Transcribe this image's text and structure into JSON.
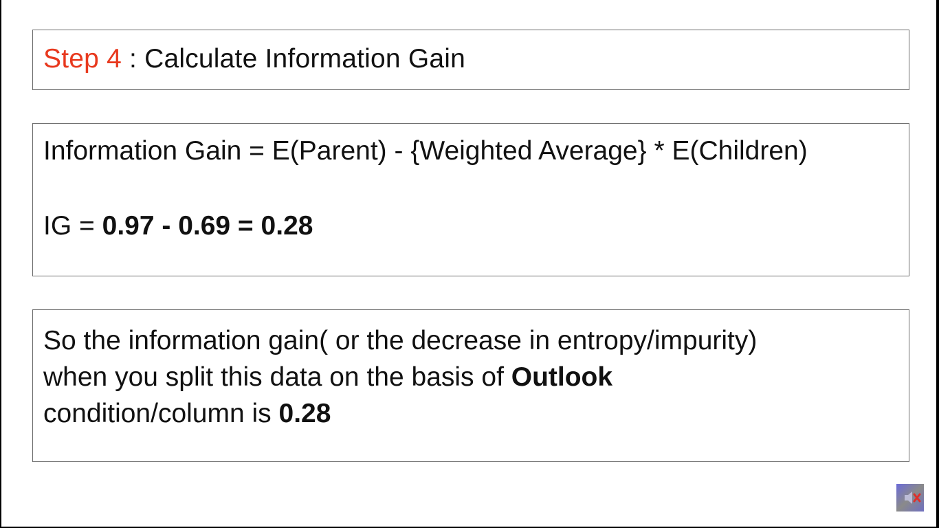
{
  "title": {
    "step_label": "Step 4",
    "separator": " : ",
    "text": "Calculate Information Gain"
  },
  "formula": {
    "text": "Information Gain = E(Parent) - {Weighted Average} * E(Children)",
    "ig_prefix": "IG = ",
    "ig_value": "0.97 - 0.69 = 0.28"
  },
  "conclusion": {
    "line1": "So the information gain( or the decrease in entropy/impurity)",
    "line2_text": "when you split this data on the basis of ",
    "line2_bold": "Outlook",
    "line3_text": "condition/column is ",
    "line3_bold": "0.28"
  },
  "icons": {
    "mute": "speaker-muted-icon"
  },
  "colors": {
    "accent": "#e8391e",
    "text": "#111111",
    "border": "#6b6b6b"
  }
}
